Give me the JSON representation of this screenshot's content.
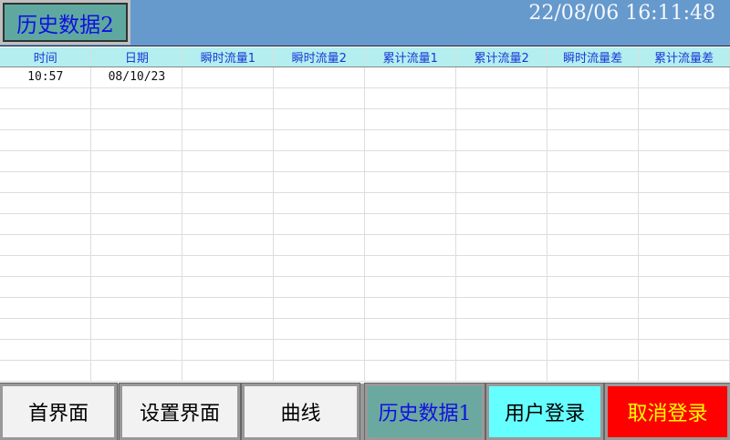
{
  "header": {
    "title": "历史数据2",
    "datetime": "22/08/06  16:11:48"
  },
  "table": {
    "columns": [
      "时间",
      "日期",
      "瞬时流量1",
      "瞬时流量2",
      "累计流量1",
      "累计流量2",
      "瞬时流量差",
      "累计流量差"
    ],
    "rows": [
      [
        "10:57",
        "08/10/23",
        "",
        "",
        "",
        "",
        "",
        ""
      ]
    ]
  },
  "nav": [
    {
      "label": "首界面",
      "bg": "#f2f2f2",
      "color": "#000"
    },
    {
      "label": "设置界面",
      "bg": "#f2f2f2",
      "color": "#000"
    },
    {
      "label": "曲线",
      "bg": "#f2f2f2",
      "color": "#000"
    },
    {
      "label": "历史数据1",
      "bg": "#6aa8a0",
      "color": "#1010e0"
    },
    {
      "label": "用户登录",
      "bg": "#66ffff",
      "color": "#000"
    },
    {
      "label": "取消登录",
      "bg": "#ff0000",
      "color": "#ffff00"
    }
  ]
}
